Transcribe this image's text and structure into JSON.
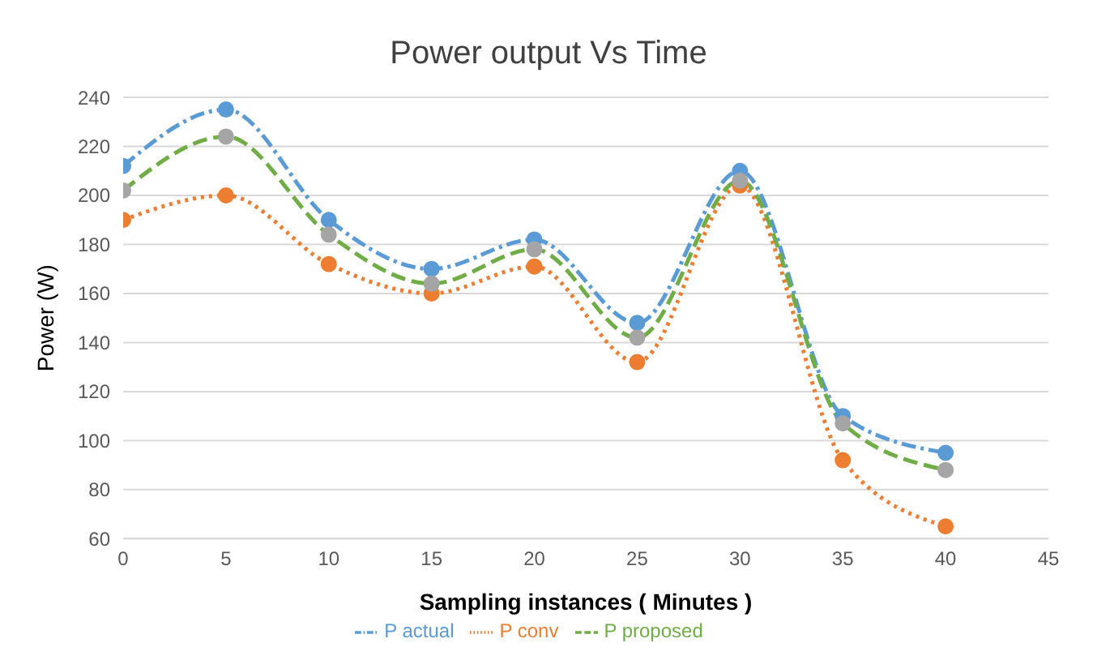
{
  "chart_data": {
    "type": "line",
    "title": "Power output Vs Time",
    "xlabel": "Sampling instances ( Minutes )",
    "ylabel": "Power (W)",
    "x": [
      0,
      5,
      10,
      15,
      20,
      25,
      30,
      35,
      40
    ],
    "series": [
      {
        "name": "P actual",
        "color": "#5b9bd5",
        "line_style": "dashdot",
        "values": [
          212,
          235,
          190,
          170,
          182,
          148,
          210,
          110,
          95
        ]
      },
      {
        "name": "P conv",
        "color": "#ed7d31",
        "line_style": "dotted",
        "values": [
          190,
          200,
          172,
          160,
          171,
          132,
          204,
          92,
          65
        ]
      },
      {
        "name": "P proposed",
        "color": "#70ad47",
        "colors": [
          "#a5a5a5",
          "#a5a5a5",
          "#a5a5a5",
          "#a5a5a5",
          "#a5a5a5",
          "#a5a5a5",
          "#a5a5a5",
          "#a5a5a5",
          "#a5a5a5"
        ],
        "line_style": "dashed",
        "values": [
          202,
          224,
          184,
          164,
          178,
          142,
          206,
          107,
          88
        ]
      }
    ],
    "xlim": [
      0,
      45
    ],
    "xticks": [
      0,
      5,
      10,
      15,
      20,
      25,
      30,
      35,
      40,
      45
    ],
    "ylim": [
      60,
      240
    ],
    "yticks": [
      60,
      80,
      100,
      120,
      140,
      160,
      180,
      200,
      220,
      240
    ],
    "grid": "y",
    "legend": "bottom",
    "marker": "circle"
  }
}
